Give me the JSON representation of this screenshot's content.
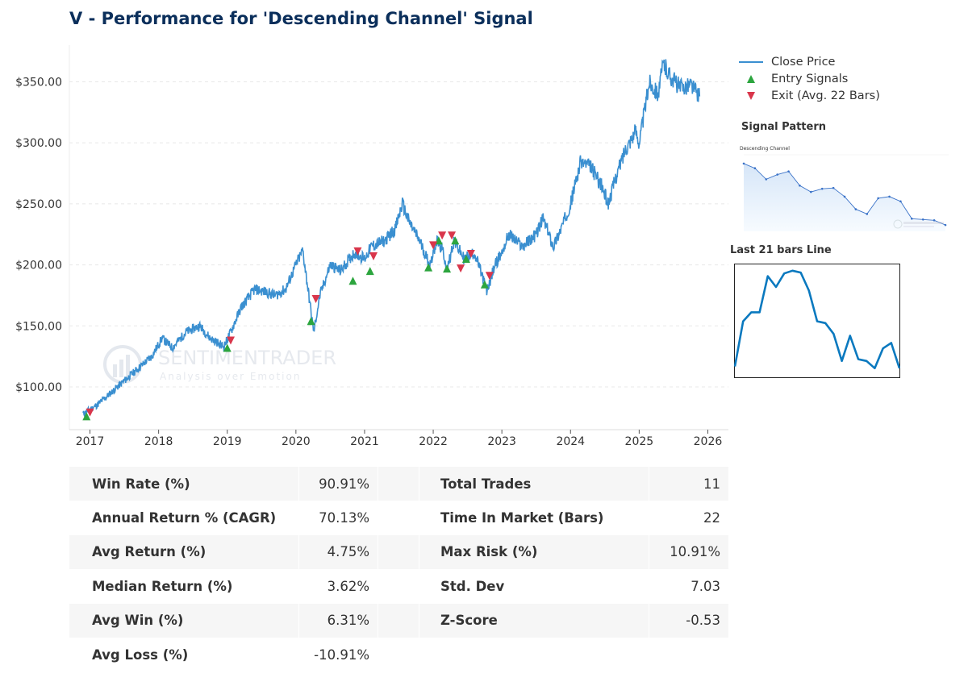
{
  "title": "V - Performance for 'Descending Channel' Signal",
  "watermark": {
    "brand": "SENTIMENTRADER",
    "tagline": "Analysis over Emotion"
  },
  "legend": {
    "close_price": "Close Price",
    "entry": "Entry Signals",
    "exit": "Exit (Avg. 22 Bars)"
  },
  "signal_pattern": {
    "title": "Signal Pattern",
    "chart_label": "Descending Channel"
  },
  "last_bars": {
    "title": "Last 21 bars Line"
  },
  "colors": {
    "line": "#3a8fd0",
    "entry": "#2ca53e",
    "exit": "#d9364b",
    "title": "#0b2f5b",
    "mini_line": "#0a79bf"
  },
  "chart_data": [
    {
      "type": "line",
      "title": "V - Performance for 'Descending Channel' Signal",
      "xlabel": "",
      "ylabel": "",
      "xlim": [
        2016.7,
        2026.3
      ],
      "ylim": [
        65,
        380
      ],
      "x_ticks": [
        2017,
        2018,
        2019,
        2020,
        2021,
        2022,
        2023,
        2024,
        2025,
        2026
      ],
      "x_tick_labels": [
        "2017",
        "2018",
        "2019",
        "2020",
        "2021",
        "2022",
        "2023",
        "2024",
        "2025",
        "2026"
      ],
      "y_ticks": [
        100,
        150,
        200,
        250,
        300,
        350
      ],
      "y_tick_labels": [
        "$100.00",
        "$150.00",
        "$200.00",
        "$250.00",
        "$300.00",
        "$350.00"
      ],
      "grid": "horizontal dashed",
      "legend_position": "right",
      "series": [
        {
          "name": "Close Price",
          "x": [
            2016.9,
            2017.1,
            2017.3,
            2017.5,
            2017.7,
            2017.9,
            2018.05,
            2018.2,
            2018.4,
            2018.6,
            2018.75,
            2018.95,
            2019.05,
            2019.2,
            2019.4,
            2019.55,
            2019.7,
            2019.85,
            2020.0,
            2020.1,
            2020.2,
            2020.26,
            2020.35,
            2020.5,
            2020.65,
            2020.85,
            2021.0,
            2021.1,
            2021.3,
            2021.45,
            2021.55,
            2021.65,
            2021.8,
            2021.95,
            2022.05,
            2022.15,
            2022.2,
            2022.3,
            2022.45,
            2022.6,
            2022.72,
            2022.78,
            2022.9,
            2023.0,
            2023.1,
            2023.3,
            2023.5,
            2023.6,
            2023.75,
            2023.9,
            2024.0,
            2024.15,
            2024.3,
            2024.45,
            2024.55,
            2024.65,
            2024.8,
            2024.95,
            2025.0,
            2025.15,
            2025.28,
            2025.35,
            2025.45,
            2025.6,
            2025.75,
            2025.88
          ],
          "y": [
            78,
            85,
            95,
            105,
            115,
            125,
            140,
            132,
            145,
            150,
            140,
            133,
            145,
            165,
            180,
            178,
            175,
            180,
            200,
            212,
            170,
            145,
            175,
            200,
            195,
            210,
            205,
            215,
            220,
            230,
            250,
            235,
            220,
            200,
            220,
            210,
            195,
            220,
            205,
            210,
            190,
            178,
            200,
            210,
            225,
            215,
            225,
            238,
            215,
            235,
            250,
            285,
            280,
            265,
            250,
            270,
            295,
            310,
            300,
            350,
            340,
            365,
            355,
            345,
            348,
            338
          ]
        }
      ],
      "entry_signals": {
        "x": [
          2016.95,
          2019.0,
          2020.22,
          2020.83,
          2021.08,
          2021.93,
          2022.08,
          2022.2,
          2022.32,
          2022.48,
          2022.75
        ],
        "y": [
          76,
          132,
          154,
          187,
          195,
          198,
          220,
          197,
          220,
          205,
          184
        ]
      },
      "exit_signals": {
        "x": [
          2017.0,
          2019.05,
          2020.29,
          2020.9,
          2021.13,
          2022.0,
          2022.13,
          2022.27,
          2022.4,
          2022.55,
          2022.82
        ],
        "y": [
          79,
          138,
          172,
          211,
          207,
          216,
          224,
          224,
          197,
          209,
          191
        ]
      }
    },
    {
      "type": "line",
      "title": "Descending Channel",
      "series": [
        {
          "name": "pattern",
          "values": [
            264,
            258,
            244,
            250,
            254,
            236,
            228,
            232,
            233,
            222,
            206,
            200,
            220,
            222,
            216,
            194,
            193,
            192,
            186
          ]
        }
      ]
    },
    {
      "type": "line",
      "title": "Last 21 bars Line",
      "series": [
        {
          "name": "last21",
          "values": [
            12,
            62,
            72,
            72,
            112,
            100,
            115,
            118,
            116,
            96,
            62,
            60,
            48,
            18,
            46,
            20,
            18,
            10,
            32,
            38,
            10
          ]
        }
      ]
    }
  ],
  "stats": {
    "rows": [
      {
        "label1": "Win Rate (%)",
        "value1": "90.91%",
        "label2": "Total Trades",
        "value2": "11"
      },
      {
        "label1": "Annual Return % (CAGR)",
        "value1": "70.13%",
        "label2": "Time In Market (Bars)",
        "value2": "22"
      },
      {
        "label1": "Avg Return (%)",
        "value1": "4.75%",
        "label2": "Max Risk (%)",
        "value2": "10.91%"
      },
      {
        "label1": "Median Return (%)",
        "value1": "3.62%",
        "label2": "Std. Dev",
        "value2": "7.03"
      },
      {
        "label1": "Avg Win (%)",
        "value1": "6.31%",
        "label2": "Z-Score",
        "value2": "-0.53"
      },
      {
        "label1": "Avg Loss (%)",
        "value1": "-10.91%",
        "label2": "",
        "value2": ""
      }
    ]
  }
}
